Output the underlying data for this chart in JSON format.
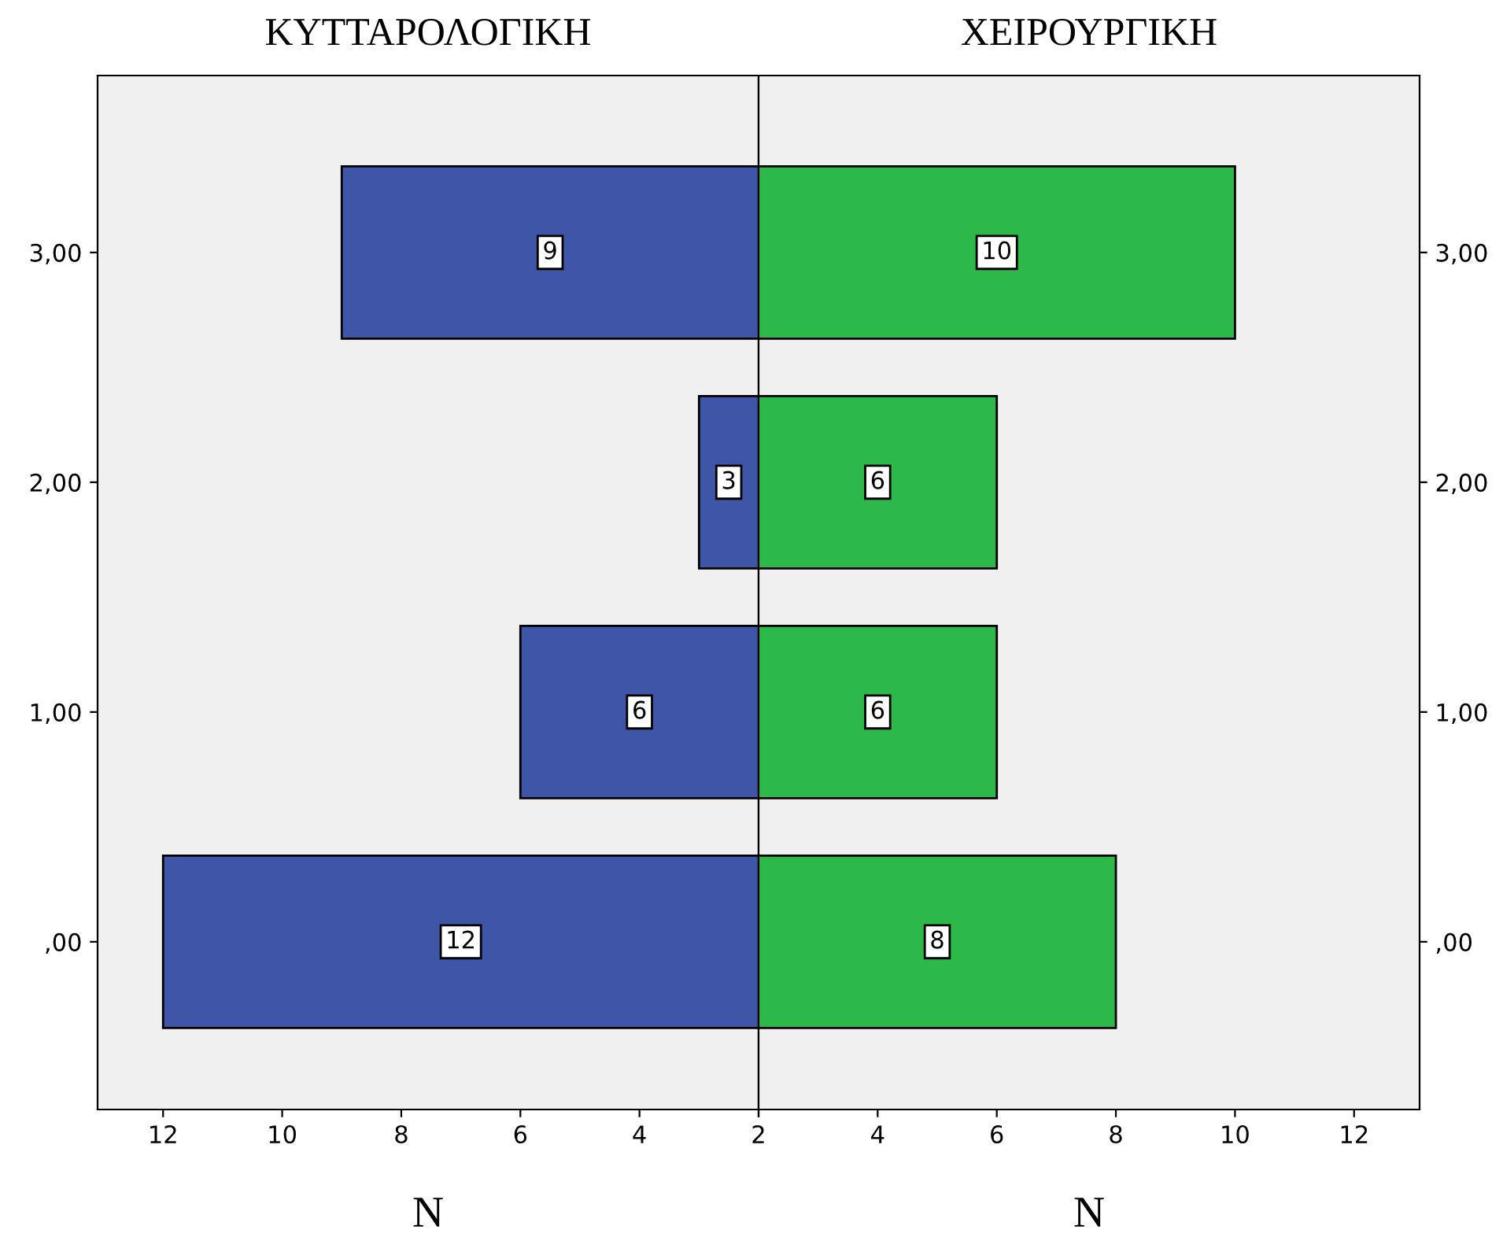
{
  "chart_data": [
    {
      "type": "bar",
      "orientation": "horizontal",
      "title": "ΚΥΤΤΑΡΟΛΟΓΙΚΗ",
      "xlabel": "N",
      "categories": [
        "3,00",
        "2,00",
        "1,00",
        ",00"
      ],
      "series": [
        {
          "color": "#3f55a8",
          "values": [
            9,
            3,
            6,
            12
          ]
        }
      ],
      "xlim": [
        13.1,
        2
      ],
      "xticks": [
        12,
        10,
        8,
        6,
        4,
        2
      ],
      "data_labels": true,
      "grid": false,
      "legend": false
    },
    {
      "type": "bar",
      "orientation": "horizontal",
      "title": "ΧΕΙΡΟΥΡΓΙΚΗ",
      "xlabel": "N",
      "categories": [
        "3,00",
        "2,00",
        "1,00",
        ",00"
      ],
      "series": [
        {
          "color": "#2db84a",
          "values": [
            10,
            6,
            6,
            8
          ]
        }
      ],
      "xlim": [
        2,
        13.1
      ],
      "xticks": [
        {
          "value": 2,
          "label": null
        },
        4,
        6,
        8,
        10,
        12
      ],
      "data_labels": true,
      "grid": false,
      "legend": false
    }
  ]
}
